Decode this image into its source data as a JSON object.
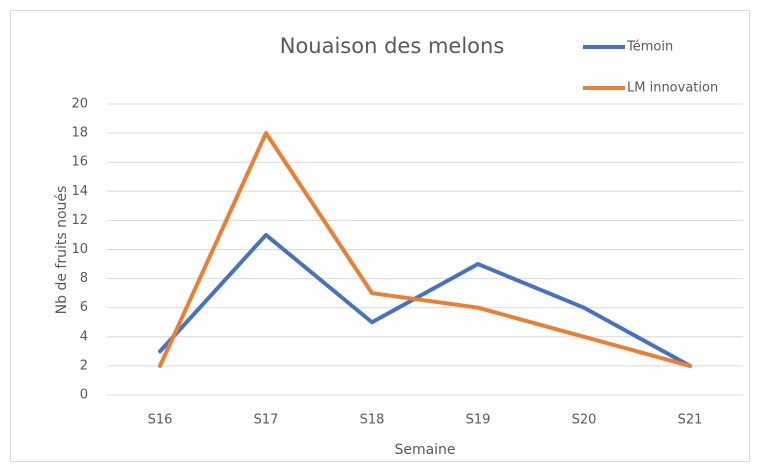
{
  "chart_data": {
    "type": "line",
    "title": "Nouaison des melons",
    "x_label": "Semaine",
    "y_label": "Nb de fruits noués",
    "categories": [
      "S16",
      "S17",
      "S18",
      "S19",
      "S20",
      "S21"
    ],
    "series": [
      {
        "name": "Témoin",
        "color": "#4472c4",
        "values": [
          3,
          11,
          5,
          9,
          6,
          2
        ]
      },
      {
        "name": "LM innovation",
        "color": "#ed7d31",
        "values": [
          2,
          18,
          7,
          6,
          4,
          2
        ]
      }
    ],
    "ylim": [
      0,
      20
    ],
    "yticks": [
      0,
      2,
      4,
      6,
      8,
      10,
      12,
      14,
      16,
      18,
      20
    ],
    "grid": true,
    "legend": "top-right"
  }
}
